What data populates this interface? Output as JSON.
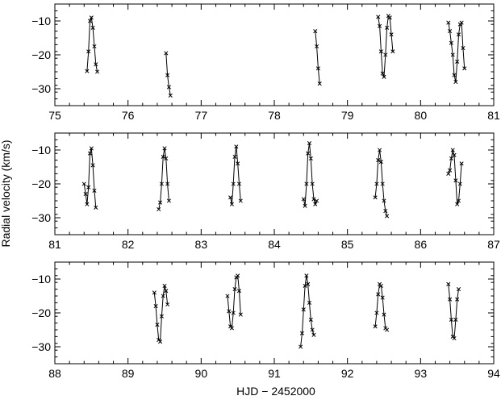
{
  "chart_data": {
    "type": "line",
    "xlabel": "HJD − 2452000",
    "ylabel": "Radial velocity (km/s)",
    "ylim": [
      -35,
      -5
    ],
    "y_ticks": [
      -10,
      -20,
      -30
    ],
    "grid": false,
    "marker": "x",
    "line_color": "#000000",
    "panels": [
      {
        "xlim": [
          75,
          81
        ],
        "x_ticks": [
          75,
          76,
          77,
          78,
          79,
          80,
          81
        ],
        "segments": [
          {
            "x": [
              75.44,
              75.46,
              75.48,
              75.5,
              75.52,
              75.54,
              75.56,
              75.58
            ],
            "y": [
              -24.8,
              -19.0,
              -10.0,
              -9.0,
              -12.0,
              -17.5,
              -22.8,
              -25.0
            ]
          },
          {
            "x": [
              76.52,
              76.54,
              76.56,
              76.58
            ],
            "y": [
              -19.5,
              -26.0,
              -29.5,
              -32.0
            ]
          },
          {
            "x": [
              78.56,
              78.58,
              78.6,
              78.62
            ],
            "y": [
              -13.0,
              -17.5,
              -24.0,
              -28.5
            ]
          },
          {
            "x": [
              79.42,
              79.44,
              79.46,
              79.48,
              79.5,
              79.52,
              79.54,
              79.56,
              79.58,
              79.6,
              79.62
            ],
            "y": [
              -8.8,
              -11.5,
              -19.0,
              -25.5,
              -26.5,
              -20.0,
              -12.0,
              -8.5,
              -9.0,
              -14.0,
              -19.0
            ]
          },
          {
            "x": [
              80.38,
              80.4,
              80.42,
              80.44,
              80.46,
              80.48,
              80.5,
              80.52,
              80.54,
              80.56,
              80.58,
              80.6
            ],
            "y": [
              -10.5,
              -13.0,
              -16.5,
              -20.0,
              -26.0,
              -28.0,
              -22.0,
              -14.0,
              -11.0,
              -10.5,
              -18.0,
              -24.0
            ]
          }
        ]
      },
      {
        "xlim": [
          81,
          87
        ],
        "x_ticks": [
          81,
          82,
          83,
          84,
          85,
          86,
          87
        ],
        "segments": [
          {
            "x": [
              81.4,
              81.42,
              81.44,
              81.46,
              81.48,
              81.5,
              81.52,
              81.54,
              81.56
            ],
            "y": [
              -20.0,
              -23.0,
              -26.0,
              -21.0,
              -11.0,
              -9.5,
              -14.5,
              -22.0,
              -27.0
            ]
          },
          {
            "x": [
              82.42,
              82.44,
              82.46,
              82.48,
              82.5,
              82.52,
              82.54,
              82.56
            ],
            "y": [
              -27.5,
              -25.5,
              -20.0,
              -12.0,
              -9.5,
              -12.5,
              -20.0,
              -25.0
            ]
          },
          {
            "x": [
              83.4,
              83.42,
              83.44,
              83.46,
              83.48,
              83.5,
              83.52,
              83.54
            ],
            "y": [
              -24.0,
              -26.0,
              -20.0,
              -12.0,
              -9.0,
              -14.0,
              -20.0,
              -25.0
            ]
          },
          {
            "x": [
              84.4,
              84.42,
              84.44,
              84.46,
              84.48,
              84.5,
              84.52,
              84.54,
              84.56,
              84.58
            ],
            "y": [
              -24.5,
              -26.5,
              -20.0,
              -11.0,
              -8.0,
              -12.5,
              -20.0,
              -24.5,
              -26.0,
              -25.0
            ]
          },
          {
            "x": [
              85.38,
              85.4,
              85.42,
              85.44,
              85.46,
              85.48,
              85.5,
              85.52,
              85.54
            ],
            "y": [
              -24.0,
              -20.0,
              -13.0,
              -10.0,
              -13.5,
              -20.0,
              -25.0,
              -28.0,
              -29.5
            ]
          },
          {
            "x": [
              86.38,
              86.4,
              86.42,
              86.44,
              86.46,
              86.48,
              86.5,
              86.52,
              86.54,
              86.56
            ],
            "y": [
              -17.0,
              -16.0,
              -12.5,
              -10.0,
              -11.5,
              -19.0,
              -26.0,
              -25.0,
              -20.0,
              -14.0
            ]
          }
        ]
      },
      {
        "xlim": [
          88,
          94
        ],
        "x_ticks": [
          88,
          89,
          90,
          91,
          92,
          93,
          94
        ],
        "segments": [
          {
            "x": [
              89.36,
              89.38,
              89.4,
              89.42,
              89.44,
              89.46,
              89.48,
              89.5,
              89.52,
              89.54
            ],
            "y": [
              -14.0,
              -18.0,
              -23.5,
              -28.0,
              -28.5,
              -21.0,
              -15.0,
              -12.0,
              -13.5,
              -17.5
            ]
          },
          {
            "x": [
              90.36,
              90.38,
              90.4,
              90.42,
              90.44,
              90.46,
              90.48,
              90.5,
              90.52,
              90.54
            ],
            "y": [
              -15.0,
              -19.5,
              -24.0,
              -24.5,
              -20.0,
              -13.0,
              -9.5,
              -9.0,
              -13.5,
              -20.5
            ]
          },
          {
            "x": [
              91.36,
              91.38,
              91.4,
              91.42,
              91.44,
              91.46,
              91.48,
              91.5,
              91.52,
              91.54
            ],
            "y": [
              -30.0,
              -26.0,
              -19.0,
              -12.0,
              -9.0,
              -11.5,
              -17.0,
              -22.0,
              -25.0,
              -26.5
            ]
          },
          {
            "x": [
              92.38,
              92.4,
              92.42,
              92.44,
              92.46,
              92.48,
              92.5,
              92.52,
              92.54
            ],
            "y": [
              -24.0,
              -20.0,
              -14.5,
              -11.5,
              -12.0,
              -15.5,
              -20.5,
              -24.5,
              -25.0
            ]
          },
          {
            "x": [
              93.38,
              93.4,
              93.42,
              93.44,
              93.46,
              93.48,
              93.5,
              93.52
            ],
            "y": [
              -11.5,
              -16.0,
              -22.0,
              -27.0,
              -27.5,
              -22.0,
              -16.0,
              -13.0
            ]
          }
        ]
      }
    ]
  }
}
